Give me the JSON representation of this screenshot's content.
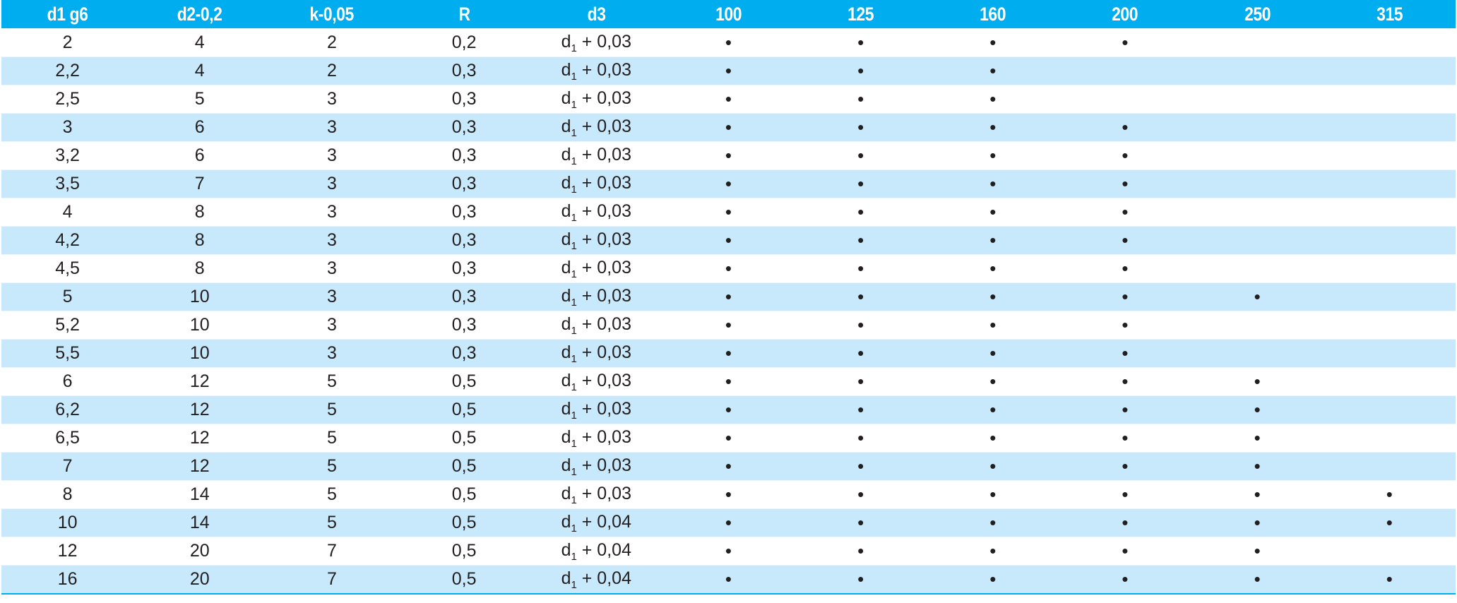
{
  "table": {
    "columns": [
      "d1 g6",
      "d2-0,2",
      "k-0,05",
      "R",
      "d3",
      "100",
      "125",
      "160",
      "200",
      "250",
      "315"
    ],
    "colors": {
      "header_bg": "#00aeef",
      "alt_row_bg": "#c7e9fb",
      "text": "#231f20"
    },
    "dot_glyph": "•",
    "rows": [
      {
        "d1": "2",
        "d2": "4",
        "k": "2",
        "R": "0,2",
        "d3": {
          "base": "d",
          "sub": "1",
          "rest": "+ 0,03"
        },
        "avail": [
          1,
          1,
          1,
          1,
          0,
          0
        ]
      },
      {
        "d1": "2,2",
        "d2": "4",
        "k": "2",
        "R": "0,3",
        "d3": {
          "base": "d",
          "sub": "1",
          "rest": "+ 0,03"
        },
        "avail": [
          1,
          1,
          1,
          0,
          0,
          0
        ]
      },
      {
        "d1": "2,5",
        "d2": "5",
        "k": "3",
        "R": "0,3",
        "d3": {
          "base": "d",
          "sub": "1",
          "rest": "+ 0,03"
        },
        "avail": [
          1,
          1,
          1,
          0,
          0,
          0
        ]
      },
      {
        "d1": "3",
        "d2": "6",
        "k": "3",
        "R": "0,3",
        "d3": {
          "base": "d",
          "sub": "1",
          "rest": "+ 0,03"
        },
        "avail": [
          1,
          1,
          1,
          1,
          0,
          0
        ]
      },
      {
        "d1": "3,2",
        "d2": "6",
        "k": "3",
        "R": "0,3",
        "d3": {
          "base": "d",
          "sub": "1",
          "rest": "+ 0,03"
        },
        "avail": [
          1,
          1,
          1,
          1,
          0,
          0
        ]
      },
      {
        "d1": "3,5",
        "d2": "7",
        "k": "3",
        "R": "0,3",
        "d3": {
          "base": "d",
          "sub": "1",
          "rest": "+ 0,03"
        },
        "avail": [
          1,
          1,
          1,
          1,
          0,
          0
        ]
      },
      {
        "d1": "4",
        "d2": "8",
        "k": "3",
        "R": "0,3",
        "d3": {
          "base": "d",
          "sub": "1",
          "rest": "+ 0,03"
        },
        "avail": [
          1,
          1,
          1,
          1,
          0,
          0
        ]
      },
      {
        "d1": "4,2",
        "d2": "8",
        "k": "3",
        "R": "0,3",
        "d3": {
          "base": "d",
          "sub": "1",
          "rest": "+ 0,03"
        },
        "avail": [
          1,
          1,
          1,
          1,
          0,
          0
        ]
      },
      {
        "d1": "4,5",
        "d2": "8",
        "k": "3",
        "R": "0,3",
        "d3": {
          "base": "d",
          "sub": "1",
          "rest": "+ 0,03"
        },
        "avail": [
          1,
          1,
          1,
          1,
          0,
          0
        ]
      },
      {
        "d1": "5",
        "d2": "10",
        "k": "3",
        "R": "0,3",
        "d3": {
          "base": "d",
          "sub": "1",
          "rest": "+ 0,03"
        },
        "avail": [
          1,
          1,
          1,
          1,
          1,
          0
        ]
      },
      {
        "d1": "5,2",
        "d2": "10",
        "k": "3",
        "R": "0,3",
        "d3": {
          "base": "d",
          "sub": "1",
          "rest": "+ 0,03"
        },
        "avail": [
          1,
          1,
          1,
          1,
          0,
          0
        ]
      },
      {
        "d1": "5,5",
        "d2": "10",
        "k": "3",
        "R": "0,3",
        "d3": {
          "base": "d",
          "sub": "1",
          "rest": "+ 0,03"
        },
        "avail": [
          1,
          1,
          1,
          1,
          0,
          0
        ]
      },
      {
        "d1": "6",
        "d2": "12",
        "k": "5",
        "R": "0,5",
        "d3": {
          "base": "d",
          "sub": "1",
          "rest": "+ 0,03"
        },
        "avail": [
          1,
          1,
          1,
          1,
          1,
          0
        ]
      },
      {
        "d1": "6,2",
        "d2": "12",
        "k": "5",
        "R": "0,5",
        "d3": {
          "base": "d",
          "sub": "1",
          "rest": "+ 0,03"
        },
        "avail": [
          1,
          1,
          1,
          1,
          1,
          0
        ]
      },
      {
        "d1": "6,5",
        "d2": "12",
        "k": "5",
        "R": "0,5",
        "d3": {
          "base": "d",
          "sub": "1",
          "rest": "+ 0,03"
        },
        "avail": [
          1,
          1,
          1,
          1,
          1,
          0
        ]
      },
      {
        "d1": "7",
        "d2": "12",
        "k": "5",
        "R": "0,5",
        "d3": {
          "base": "d",
          "sub": "1",
          "rest": "+ 0,03"
        },
        "avail": [
          1,
          1,
          1,
          1,
          1,
          0
        ]
      },
      {
        "d1": "8",
        "d2": "14",
        "k": "5",
        "R": "0,5",
        "d3": {
          "base": "d",
          "sub": "1",
          "rest": "+ 0,03"
        },
        "avail": [
          1,
          1,
          1,
          1,
          1,
          1
        ]
      },
      {
        "d1": "10",
        "d2": "14",
        "k": "5",
        "R": "0,5",
        "d3": {
          "base": "d",
          "sub": "1",
          "rest": "+ 0,04"
        },
        "avail": [
          1,
          1,
          1,
          1,
          1,
          1
        ]
      },
      {
        "d1": "12",
        "d2": "20",
        "k": "7",
        "R": "0,5",
        "d3": {
          "base": "d",
          "sub": "1",
          "rest": "+ 0,04"
        },
        "avail": [
          1,
          1,
          1,
          1,
          1,
          0
        ]
      },
      {
        "d1": "16",
        "d2": "20",
        "k": "7",
        "R": "0,5",
        "d3": {
          "base": "d",
          "sub": "1",
          "rest": "+ 0,04"
        },
        "avail": [
          1,
          1,
          1,
          1,
          1,
          1
        ]
      }
    ]
  }
}
